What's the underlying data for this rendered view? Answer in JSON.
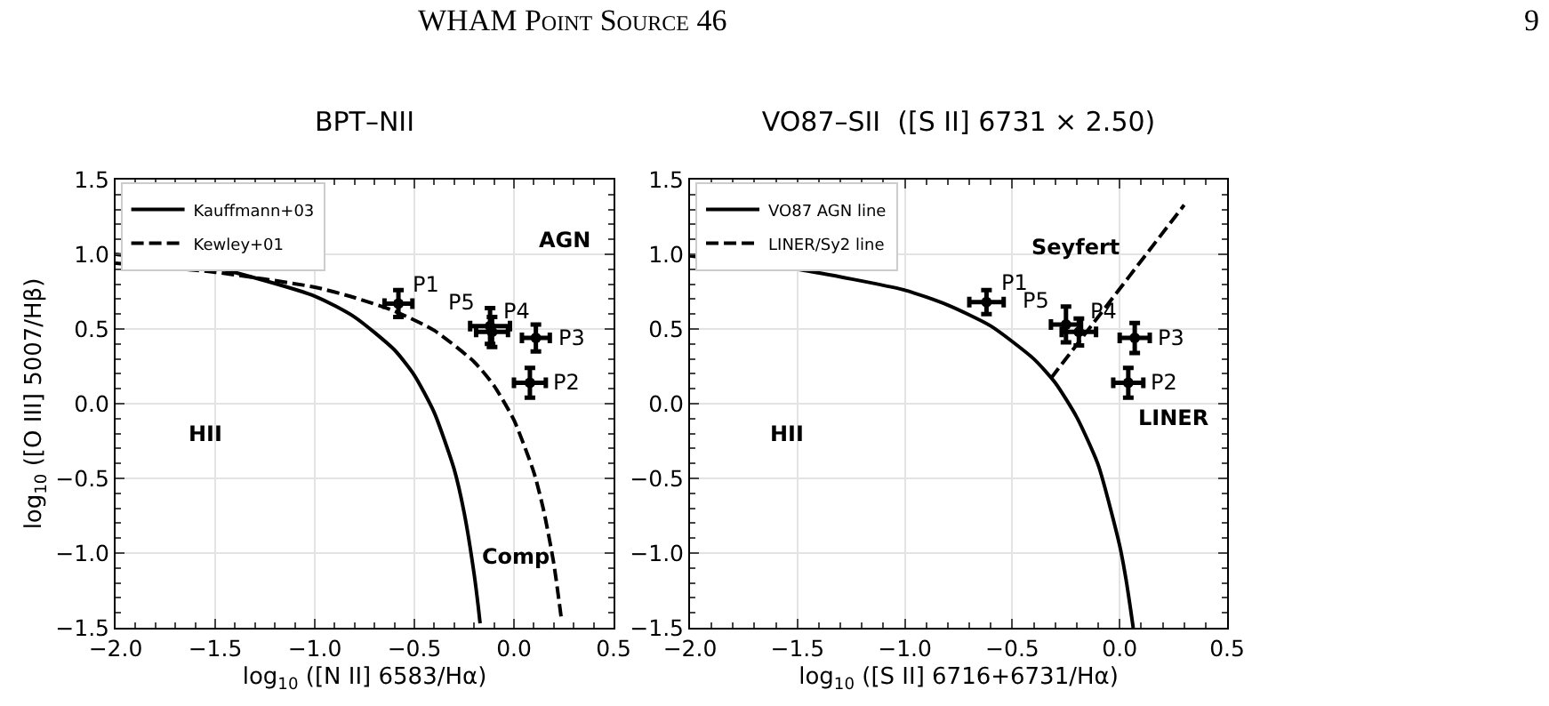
{
  "chart_data": [
    {
      "type": "scatter",
      "title": "BPT–NII",
      "xlabel": "log$_{10}$ ([N II] 6583/Hα)",
      "ylabel": "log$_{10}$ ([O III] 5007/Hβ)",
      "xlim": [
        -2.0,
        0.5
      ],
      "ylim": [
        -1.5,
        1.5
      ],
      "xticks": [
        {
          "value": -2.0,
          "label": "−2.0"
        },
        {
          "value": -1.5,
          "label": "−1.5"
        },
        {
          "value": -1.0,
          "label": "−1.0"
        },
        {
          "value": -0.5,
          "label": "−0.5"
        },
        {
          "value": 0.0,
          "label": "0.0"
        },
        {
          "value": 0.5,
          "label": "0.5"
        }
      ],
      "yticks": [
        {
          "value": -1.5,
          "label": "−1.5"
        },
        {
          "value": -1.0,
          "label": "−1.0"
        },
        {
          "value": -0.5,
          "label": "−0.5"
        },
        {
          "value": 0.0,
          "label": "0.0"
        },
        {
          "value": 0.5,
          "label": "0.5"
        },
        {
          "value": 1.0,
          "label": "1.0"
        },
        {
          "value": 1.5,
          "label": "1.5"
        }
      ],
      "grid": true,
      "legend": "top left",
      "series": [
        {
          "name": "Kauffmann+03",
          "type": "line",
          "line_style": "solid",
          "color": "#000000",
          "x": [
            -2.0,
            -1.5,
            -1.0,
            -0.8,
            -0.6,
            -0.5,
            -0.4,
            -0.3,
            -0.25,
            -0.2,
            -0.18,
            -0.17
          ],
          "values": [
            1.0,
            0.91,
            0.72,
            0.58,
            0.36,
            0.19,
            -0.06,
            -0.44,
            -0.73,
            -1.14,
            -1.35,
            -1.47
          ]
        },
        {
          "name": "Kewley+01",
          "type": "line",
          "line_style": "dashed",
          "color": "#000000",
          "x": [
            -2.0,
            -1.5,
            -1.0,
            -0.8,
            -0.6,
            -0.4,
            -0.2,
            -0.1,
            0.0,
            0.1,
            0.15,
            0.2,
            0.24
          ],
          "values": [
            0.94,
            0.88,
            0.78,
            0.71,
            0.62,
            0.49,
            0.28,
            0.12,
            -0.11,
            -0.46,
            -0.72,
            -1.07,
            -1.46
          ]
        },
        {
          "marker": "circle",
          "color": "#000000",
          "x": [
            -0.58,
            0.08,
            0.11,
            -0.11,
            -0.12
          ],
          "values": [
            0.67,
            0.14,
            0.44,
            0.48,
            0.52
          ],
          "xerrors": [
            0.07,
            0.08,
            0.07,
            0.08,
            0.1
          ],
          "errors": [
            0.09,
            0.1,
            0.09,
            0.1,
            0.12
          ]
        }
      ],
      "annotations": [
        "WHAM Point Source 46",
        "9",
        {
          "text": "P1",
          "x": -0.58,
          "y": 0.67
        },
        {
          "text": "P2",
          "x": 0.08,
          "y": 0.14
        },
        {
          "text": "P3",
          "x": 0.11,
          "y": 0.44
        },
        {
          "text": "P4",
          "x": -0.11,
          "y": 0.48
        },
        {
          "text": "P5",
          "x": -0.12,
          "y": 0.52
        },
        "AGN",
        "HII",
        "Comp"
      ]
    },
    {
      "type": "scatter",
      "title": "VO87–SII  ([S II] 6731 × 2.50)",
      "xlabel": "log$_{10}$ ([S II] 6716+6731/Hα)",
      "xlim": [
        -2.0,
        0.5
      ],
      "ylim": [
        -1.5,
        1.5
      ],
      "xticks": [
        {
          "value": -2.0,
          "label": "−2.0"
        },
        {
          "value": -1.5,
          "label": "−1.5"
        },
        {
          "value": -1.0,
          "label": "−1.0"
        },
        {
          "value": -0.5,
          "label": "−0.5"
        },
        {
          "value": 0.0,
          "label": "0.0"
        },
        {
          "value": 0.5,
          "label": "0.5"
        }
      ],
      "yticks": [
        {
          "value": -1.5,
          "label": "−1.5"
        },
        {
          "value": -1.0,
          "label": "−1.0"
        },
        {
          "value": -0.5,
          "label": "−0.5"
        },
        {
          "value": 0.0,
          "label": "0.0"
        },
        {
          "value": 0.5,
          "label": "0.5"
        },
        {
          "value": 1.0,
          "label": "1.0"
        },
        {
          "value": 1.5,
          "label": "1.5"
        }
      ],
      "grid": true,
      "legend": "top left",
      "series": [
        {
          "name": "VO87 AGN line",
          "type": "line",
          "line_style": "solid",
          "color": "#000000",
          "x": [
            -2.0,
            -1.5,
            -1.0,
            -0.8,
            -0.6,
            -0.4,
            -0.3,
            -0.2,
            -0.1,
            0.0,
            0.03,
            0.05,
            0.063
          ],
          "values": [
            0.99,
            0.9,
            0.76,
            0.66,
            0.52,
            0.3,
            0.14,
            -0.09,
            -0.41,
            -0.95,
            -1.18,
            -1.37,
            -1.5
          ]
        },
        {
          "name": "LINER/Sy2 line",
          "type": "line",
          "line_style": "dashed",
          "color": "#000000",
          "x": [
            -0.32,
            0.3
          ],
          "values": [
            0.17,
            1.33
          ]
        },
        {
          "marker": "circle",
          "color": "#000000",
          "x": [
            -0.62,
            0.04,
            0.07,
            -0.19,
            -0.25
          ],
          "values": [
            0.68,
            0.14,
            0.44,
            0.48,
            0.53
          ],
          "xerrors": [
            0.08,
            0.07,
            0.07,
            0.08,
            0.07
          ],
          "errors": [
            0.08,
            0.1,
            0.1,
            0.09,
            0.12
          ]
        }
      ],
      "annotations": [
        {
          "text": "P1",
          "x": -0.62,
          "y": 0.68
        },
        {
          "text": "P2",
          "x": 0.04,
          "y": 0.14
        },
        {
          "text": "P3",
          "x": 0.07,
          "y": 0.44
        },
        {
          "text": "P4",
          "x": -0.19,
          "y": 0.48
        },
        {
          "text": "P5",
          "x": -0.25,
          "y": 0.53
        },
        "Seyfert",
        "HII",
        "LINER"
      ]
    }
  ]
}
